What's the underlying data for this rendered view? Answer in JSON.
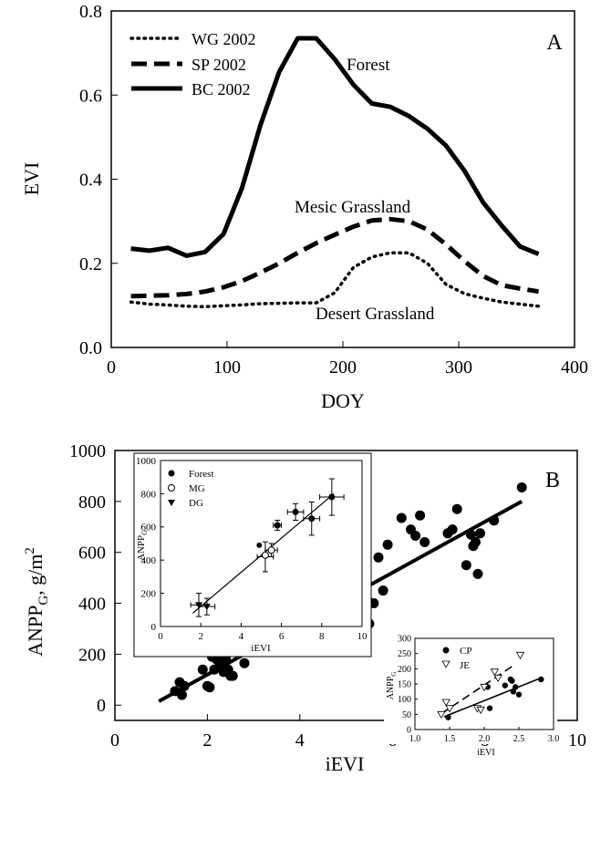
{
  "chart_data": [
    {
      "panel_label": "A",
      "type": "line",
      "xlabel": "DOY",
      "ylabel": "EVI",
      "xlim": [
        0,
        400
      ],
      "ylim": [
        0.0,
        0.8
      ],
      "xticks": [
        "0",
        "100",
        "200",
        "300",
        "400"
      ],
      "yticks": [
        "0.0",
        "0.2",
        "0.4",
        "0.6",
        "0.8"
      ],
      "grid": false,
      "legend_position": "top-left",
      "series": [
        {
          "name": "WG 2002",
          "style": "dotted",
          "annotation": "Desert Grassland",
          "x": [
            17,
            33,
            49,
            65,
            81,
            97,
            113,
            129,
            145,
            161,
            177,
            193,
            209,
            225,
            241,
            257,
            273,
            289,
            305,
            321,
            337,
            353,
            369
          ],
          "y": [
            0.108,
            0.103,
            0.101,
            0.098,
            0.097,
            0.099,
            0.101,
            0.104,
            0.105,
            0.106,
            0.106,
            0.13,
            0.19,
            0.215,
            0.225,
            0.225,
            0.2,
            0.15,
            0.128,
            0.117,
            0.108,
            0.103,
            0.098
          ]
        },
        {
          "name": "SP 2002",
          "style": "dashed",
          "annotation": "Mesic Grassland",
          "x": [
            17,
            33,
            49,
            65,
            81,
            97,
            113,
            129,
            145,
            161,
            177,
            193,
            209,
            225,
            241,
            257,
            273,
            289,
            305,
            321,
            337,
            353,
            369
          ],
          "y": [
            0.122,
            0.123,
            0.124,
            0.127,
            0.133,
            0.143,
            0.158,
            0.178,
            0.2,
            0.225,
            0.248,
            0.268,
            0.287,
            0.302,
            0.305,
            0.3,
            0.28,
            0.245,
            0.205,
            0.17,
            0.148,
            0.14,
            0.133
          ]
        },
        {
          "name": "BC 2002",
          "style": "solid",
          "annotation": "Forest",
          "x": [
            17,
            33,
            49,
            65,
            81,
            97,
            113,
            129,
            145,
            161,
            177,
            193,
            209,
            225,
            241,
            257,
            273,
            289,
            305,
            321,
            337,
            353,
            369
          ],
          "y": [
            0.235,
            0.23,
            0.237,
            0.218,
            0.227,
            0.27,
            0.38,
            0.53,
            0.655,
            0.735,
            0.735,
            0.685,
            0.625,
            0.58,
            0.572,
            0.55,
            0.52,
            0.48,
            0.42,
            0.345,
            0.29,
            0.24,
            0.222
          ]
        }
      ],
      "annotations": [
        "Forest",
        "Mesic Grassland",
        "Desert Grassland"
      ]
    },
    {
      "panel_label": "B",
      "type": "scatter",
      "xlabel": "iEVI",
      "ylabel_main": "ANPP",
      "ylabel_sub": "G",
      "ylabel_rest": ", g/m",
      "ylabel_sup": "2",
      "xlim": [
        0,
        10
      ],
      "ylim": [
        -60,
        1000
      ],
      "xticks": [
        "0",
        "2",
        "4",
        "6",
        "8",
        "10"
      ],
      "yticks": [
        "0",
        "200",
        "400",
        "600",
        "800",
        "1000"
      ],
      "grid": false,
      "fit_line": {
        "x": [
          0.95,
          8.8
        ],
        "y": [
          15,
          800
        ]
      },
      "points": {
        "x": [
          1.3,
          1.4,
          1.45,
          1.5,
          1.9,
          2.0,
          2.05,
          2.1,
          2.15,
          2.2,
          2.25,
          2.3,
          2.35,
          2.4,
          2.45,
          2.5,
          2.5,
          2.55,
          2.8,
          4.8,
          5.1,
          5.15,
          5.2,
          5.25,
          5.3,
          5.35,
          5.4,
          5.45,
          5.5,
          5.6,
          5.7,
          5.8,
          5.9,
          6.2,
          6.4,
          6.5,
          6.6,
          6.7,
          7.2,
          7.3,
          7.4,
          7.6,
          7.7,
          7.75,
          7.8,
          7.85,
          7.9,
          8.2,
          8.8
        ],
        "y": [
          55,
          90,
          40,
          75,
          140,
          75,
          70,
          190,
          140,
          180,
          150,
          160,
          130,
          180,
          140,
          115,
          250,
          115,
          165,
          485,
          460,
          380,
          350,
          380,
          285,
          460,
          540,
          420,
          320,
          400,
          580,
          450,
          630,
          735,
          690,
          665,
          745,
          640,
          675,
          690,
          770,
          550,
          670,
          625,
          640,
          515,
          675,
          725,
          855
        ]
      },
      "insets": [
        {
          "type": "scatter",
          "xlabel": "iEVI",
          "ylabel_main": "ANPP",
          "ylabel_sub": "G",
          "xlim": [
            0,
            10
          ],
          "ylim": [
            0,
            1000
          ],
          "xticks": [
            "0",
            "2",
            "4",
            "6",
            "8",
            "10"
          ],
          "yticks": [
            "0",
            "200",
            "400",
            "600",
            "800",
            "1000"
          ],
          "legend_position": "top-left",
          "series": [
            {
              "name": "Forest",
              "marker": "filled-circle",
              "x": [
                5.8,
                6.7,
                7.5,
                8.5
              ],
              "y": [
                610,
                690,
                650,
                780
              ]
            },
            {
              "name": "MG",
              "marker": "open-circle",
              "x": [
                5.2,
                5.5
              ],
              "y": [
                430,
                460
              ]
            },
            {
              "name": "DG",
              "marker": "filled-triangle",
              "x": [
                1.9,
                2.3
              ],
              "y": [
                130,
                120
              ]
            }
          ],
          "extra_point": {
            "x": 4.9,
            "y": 490
          },
          "error_bars": [
            {
              "x": 1.9,
              "y": 130,
              "dx": 0.4,
              "dy": 70
            },
            {
              "x": 2.3,
              "y": 120,
              "dx": 0.4,
              "dy": 50
            },
            {
              "x": 5.2,
              "y": 420,
              "dx": 0.4,
              "dy": 90
            },
            {
              "x": 5.5,
              "y": 460,
              "dx": 0.3,
              "dy": 40
            },
            {
              "x": 5.8,
              "y": 610,
              "dx": 0.2,
              "dy": 30
            },
            {
              "x": 6.7,
              "y": 690,
              "dx": 0.4,
              "dy": 50
            },
            {
              "x": 7.5,
              "y": 650,
              "dx": 0.4,
              "dy": 100
            },
            {
              "x": 8.5,
              "y": 780,
              "dx": 0.6,
              "dy": 110
            }
          ],
          "fit_line": {
            "x": [
              1.6,
              8.6
            ],
            "y": [
              80,
              800
            ]
          }
        },
        {
          "type": "scatter",
          "xlabel": "iEVI",
          "ylabel_main": "ANPP",
          "ylabel_sub": "G",
          "xlim": [
            1.0,
            3.0
          ],
          "ylim": [
            0,
            300
          ],
          "xticks": [
            "1.0",
            "1.5",
            "2.0",
            "2.5",
            "3.0"
          ],
          "yticks": [
            "0",
            "50",
            "100",
            "150",
            "200",
            "250",
            "300"
          ],
          "legend_position": "top-left",
          "series": [
            {
              "name": "CP",
              "marker": "filled-circle",
              "x": [
                1.48,
                2.05,
                2.08,
                2.3,
                2.38,
                2.4,
                2.42,
                2.45,
                2.5,
                2.82
              ],
              "y": [
                40,
                140,
                70,
                145,
                165,
                160,
                125,
                140,
                115,
                165
              ],
              "fit_line": {
                "x": [
                  1.42,
                  2.8
                ],
                "y": [
                  42,
                  168
                ]
              }
            },
            {
              "name": "JE",
              "marker": "open-triangle",
              "x": [
                1.38,
                1.45,
                1.5,
                1.9,
                1.95,
                2.0,
                2.15,
                2.2,
                2.52
              ],
              "y": [
                50,
                90,
                70,
                70,
                65,
                140,
                190,
                170,
                245
              ],
              "fit_line": {
                "x": [
                  1.38,
                  2.45
                ],
                "y": [
                  52,
                  215
                ]
              }
            }
          ]
        }
      ]
    }
  ]
}
